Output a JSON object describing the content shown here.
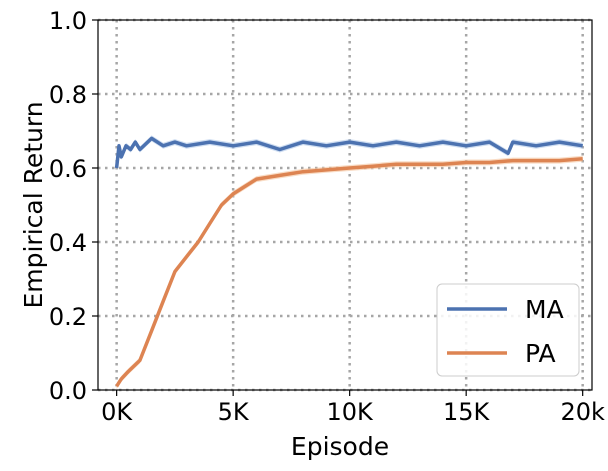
{
  "chart_data": {
    "type": "line",
    "title": "",
    "xlabel": "Episode",
    "ylabel": "Empirical Return",
    "xlim": [
      -800,
      20400
    ],
    "ylim": [
      0.0,
      1.0
    ],
    "x_ticks": [
      0,
      5000,
      10000,
      15000,
      20000
    ],
    "x_tick_labels": [
      "0K",
      "5K",
      "10K",
      "15K",
      "20k"
    ],
    "y_ticks": [
      0.0,
      0.2,
      0.4,
      0.6,
      0.8,
      1.0
    ],
    "y_tick_labels": [
      "0.0",
      "0.2",
      "0.4",
      "0.6",
      "0.8",
      "1.0"
    ],
    "grid": true,
    "legend_position": "lower-right",
    "series": [
      {
        "name": "MA",
        "color": "#4c72b0",
        "band_color": "#aec7e8",
        "x": [
          0,
          100,
          200,
          400,
          600,
          800,
          1000,
          1500,
          2000,
          2500,
          3000,
          4000,
          5000,
          6000,
          7000,
          8000,
          9000,
          10000,
          11000,
          12000,
          13000,
          14000,
          15000,
          16000,
          16800,
          17000,
          18000,
          19000,
          20000
        ],
        "y": [
          0.6,
          0.66,
          0.63,
          0.66,
          0.65,
          0.67,
          0.65,
          0.68,
          0.66,
          0.67,
          0.66,
          0.67,
          0.66,
          0.67,
          0.65,
          0.67,
          0.66,
          0.67,
          0.66,
          0.67,
          0.66,
          0.67,
          0.66,
          0.67,
          0.64,
          0.67,
          0.66,
          0.67,
          0.66
        ]
      },
      {
        "name": "PA",
        "color": "#dd8452",
        "band_color": "#f5c49f",
        "x": [
          0,
          200,
          500,
          1000,
          1500,
          2000,
          2500,
          3000,
          3500,
          4000,
          4500,
          5000,
          5500,
          6000,
          7000,
          8000,
          9000,
          10000,
          11000,
          12000,
          13000,
          14000,
          15000,
          16000,
          17000,
          18000,
          19000,
          20000
        ],
        "y": [
          0.01,
          0.03,
          0.05,
          0.08,
          0.16,
          0.24,
          0.32,
          0.36,
          0.4,
          0.45,
          0.5,
          0.53,
          0.55,
          0.57,
          0.58,
          0.59,
          0.595,
          0.6,
          0.605,
          0.61,
          0.61,
          0.61,
          0.615,
          0.615,
          0.62,
          0.62,
          0.62,
          0.625
        ]
      }
    ]
  }
}
